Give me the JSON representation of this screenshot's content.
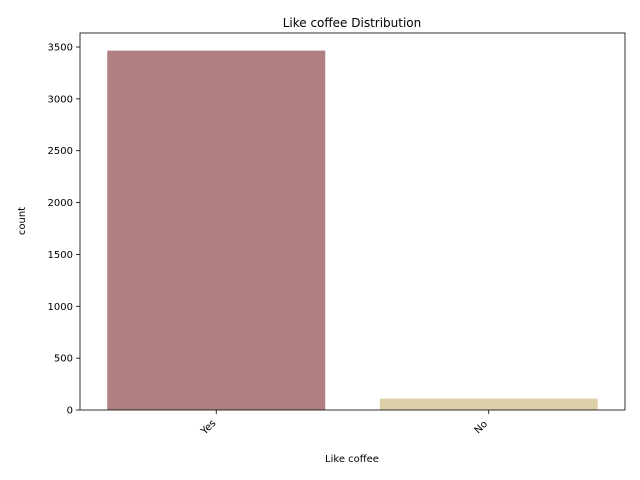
{
  "chart_data": {
    "type": "bar",
    "title": "Like coffee Distribution",
    "xlabel": "Like coffee",
    "ylabel": "count",
    "categories": [
      "Yes",
      "No"
    ],
    "values": [
      3465,
      110
    ],
    "colors": [
      "#b08080",
      "#ddd0a8"
    ],
    "ylim": [
      0,
      3635
    ],
    "yticks": [
      0,
      500,
      1000,
      1500,
      2000,
      2500,
      3000,
      3500
    ],
    "grid": false,
    "x_tick_rotation": 45
  }
}
